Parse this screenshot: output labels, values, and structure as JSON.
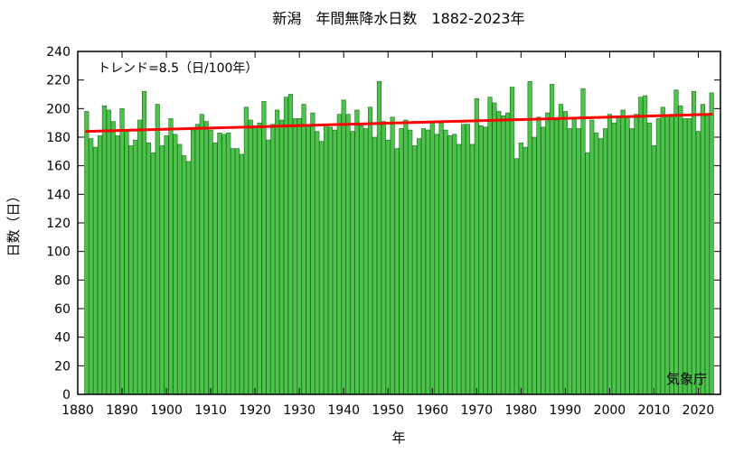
{
  "chart_data": {
    "type": "bar",
    "title": "新潟　年間無降水日数　1882-2023年",
    "xlabel": "年",
    "ylabel": "日数（日）",
    "xlim": [
      1880,
      2025
    ],
    "ylim": [
      0,
      240
    ],
    "x_ticks": [
      1880,
      1890,
      1900,
      1910,
      1920,
      1930,
      1940,
      1950,
      1960,
      1970,
      1980,
      1990,
      2000,
      2010,
      2020
    ],
    "y_ticks": [
      0,
      20,
      40,
      60,
      80,
      100,
      120,
      140,
      160,
      180,
      200,
      220,
      240
    ],
    "grid": false,
    "trend_label": "トレンド=8.5（日/100年）",
    "trend": {
      "rate_per_100_years": 8.5,
      "start": [
        1882,
        184
      ],
      "end": [
        2023,
        196
      ]
    },
    "source_label": "気象庁",
    "colors": {
      "bar_fill": "#4CC44C",
      "bar_edge": "#1f6b1f",
      "trend_line": "#ff0000"
    },
    "x": [
      1882,
      1883,
      1884,
      1885,
      1886,
      1887,
      1888,
      1889,
      1890,
      1891,
      1892,
      1893,
      1894,
      1895,
      1896,
      1897,
      1898,
      1899,
      1900,
      1901,
      1902,
      1903,
      1904,
      1905,
      1906,
      1907,
      1908,
      1909,
      1910,
      1911,
      1912,
      1913,
      1914,
      1915,
      1916,
      1917,
      1918,
      1919,
      1920,
      1921,
      1922,
      1923,
      1924,
      1925,
      1926,
      1927,
      1928,
      1929,
      1930,
      1931,
      1932,
      1933,
      1934,
      1935,
      1936,
      1937,
      1938,
      1939,
      1940,
      1941,
      1942,
      1943,
      1944,
      1945,
      1946,
      1947,
      1948,
      1949,
      1950,
      1951,
      1952,
      1953,
      1954,
      1955,
      1956,
      1957,
      1958,
      1959,
      1960,
      1961,
      1962,
      1963,
      1964,
      1965,
      1966,
      1967,
      1968,
      1969,
      1970,
      1971,
      1972,
      1973,
      1974,
      1975,
      1976,
      1977,
      1978,
      1979,
      1980,
      1981,
      1982,
      1983,
      1984,
      1985,
      1986,
      1987,
      1988,
      1989,
      1990,
      1991,
      1992,
      1993,
      1994,
      1995,
      1996,
      1997,
      1998,
      1999,
      2000,
      2001,
      2002,
      2003,
      2004,
      2005,
      2006,
      2007,
      2008,
      2009,
      2010,
      2011,
      2012,
      2013,
      2014,
      2015,
      2016,
      2017,
      2018,
      2019,
      2020,
      2021,
      2022,
      2023
    ],
    "values": [
      198,
      179,
      173,
      181,
      202,
      199,
      191,
      181,
      200,
      184,
      174,
      178,
      192,
      212,
      176,
      169,
      203,
      174,
      181,
      193,
      182,
      175,
      167,
      163,
      185,
      189,
      196,
      191,
      185,
      176,
      183,
      182,
      183,
      172,
      172,
      168,
      201,
      192,
      188,
      190,
      205,
      178,
      189,
      199,
      192,
      208,
      210,
      193,
      193,
      203,
      188,
      197,
      184,
      177,
      189,
      187,
      185,
      196,
      206,
      196,
      184,
      199,
      188,
      186,
      201,
      180,
      219,
      191,
      178,
      194,
      172,
      186,
      192,
      185,
      174,
      179,
      186,
      185,
      190,
      182,
      190,
      185,
      181,
      182,
      175,
      189,
      189,
      175,
      207,
      188,
      187,
      208,
      204,
      198,
      195,
      197,
      215,
      165,
      176,
      173,
      219,
      180,
      194,
      187,
      197,
      217,
      192,
      203,
      198,
      186,
      193,
      186,
      214,
      169,
      192,
      183,
      179,
      186,
      196,
      190,
      195,
      199,
      195,
      186,
      196,
      208,
      209,
      190,
      174,
      193,
      201,
      195,
      196,
      213,
      202,
      193,
      193,
      212,
      184,
      203,
      195,
      211
    ]
  }
}
